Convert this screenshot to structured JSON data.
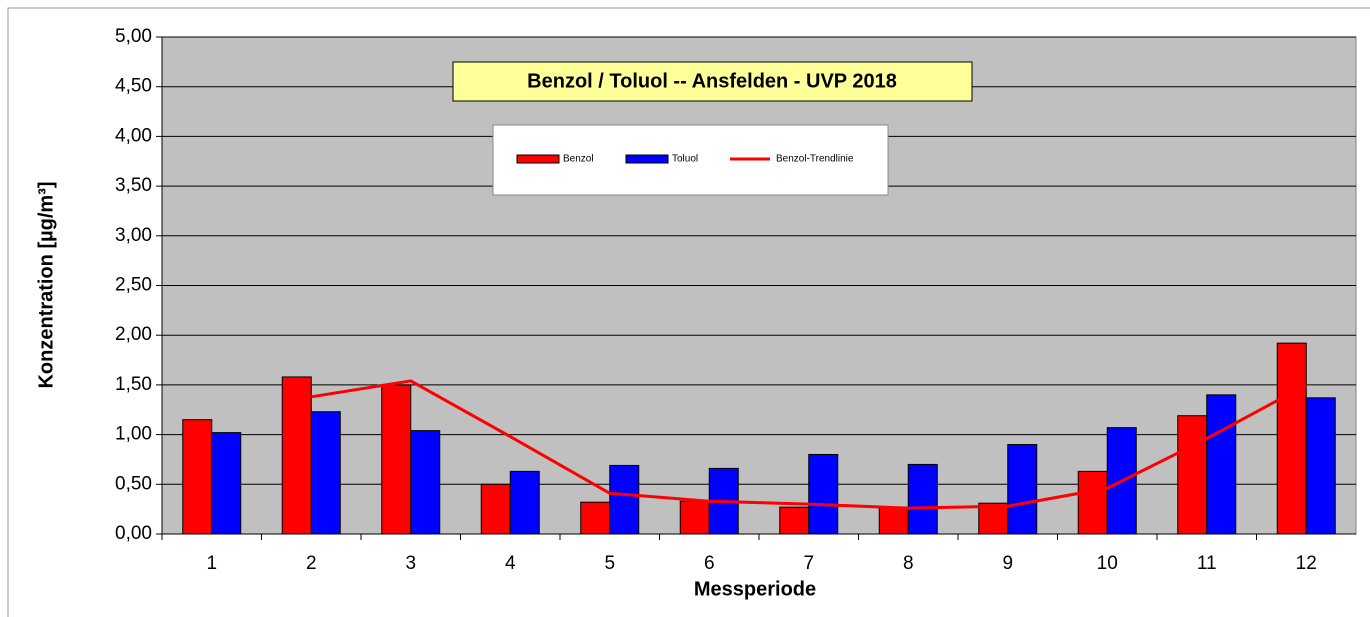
{
  "chart_data": {
    "type": "bar",
    "title": "Benzol / Toluol -- Ansfelden - UVP 2018",
    "x_label": "Messperiode",
    "y_label": "Konzentration [µg/m³]",
    "categories": [
      "1",
      "2",
      "3",
      "4",
      "5",
      "6",
      "7",
      "8",
      "9",
      "10",
      "11",
      "12"
    ],
    "series": [
      {
        "name": "Benzol",
        "color": "#ff0000",
        "values": [
          1.15,
          1.58,
          1.5,
          0.5,
          0.32,
          0.33,
          0.27,
          0.27,
          0.31,
          0.63,
          1.19,
          1.92
        ]
      },
      {
        "name": "Toluol",
        "color": "#0000ff",
        "values": [
          1.02,
          1.23,
          1.04,
          0.63,
          0.69,
          0.66,
          0.8,
          0.7,
          0.9,
          1.07,
          1.4,
          1.37
        ]
      },
      {
        "name": "Benzol-Trendlinie",
        "type": "line",
        "color": "#ff0000",
        "values": [
          null,
          1.38,
          1.54,
          0.98,
          0.41,
          0.33,
          0.3,
          0.26,
          0.28,
          0.46,
          0.96,
          1.5
        ]
      }
    ],
    "ylim": [
      0,
      5
    ],
    "yticks": [
      {
        "value": 0,
        "label": "0,00"
      },
      {
        "value": 0.5,
        "label": "0,50"
      },
      {
        "value": 1,
        "label": "1,00"
      },
      {
        "value": 1.5,
        "label": "1,50"
      },
      {
        "value": 2,
        "label": "2,00"
      },
      {
        "value": 2.5,
        "label": "2,50"
      },
      {
        "value": 3,
        "label": "3,00"
      },
      {
        "value": 3.5,
        "label": "3,50"
      },
      {
        "value": 4,
        "label": "4,00"
      },
      {
        "value": 4.5,
        "label": "4,50"
      },
      {
        "value": 5,
        "label": "5,00"
      }
    ],
    "grid": true
  }
}
